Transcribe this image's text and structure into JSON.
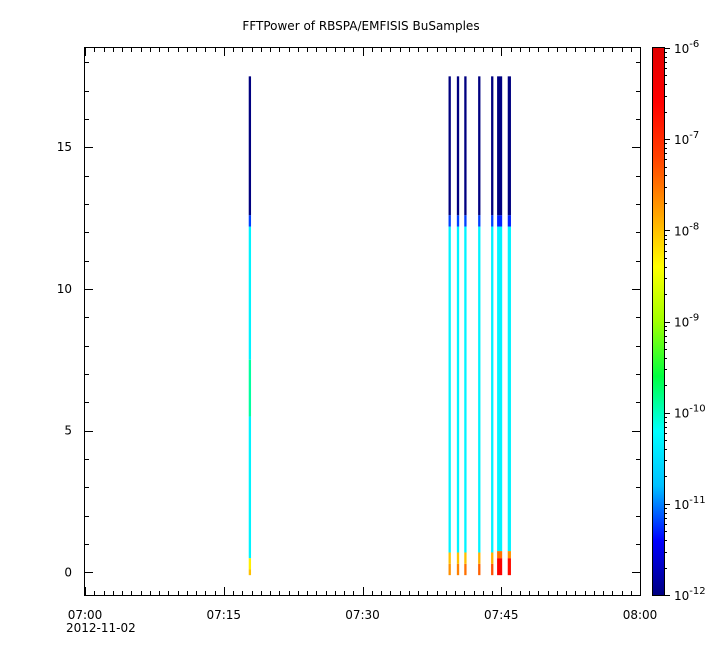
{
  "chart_data": {
    "type": "heatmap",
    "title": "FFTPower of RBSPA/EMFISIS  BuSamples",
    "xlabel": "",
    "ylabel": "",
    "x_axis": {
      "type": "time",
      "range": [
        "07:00",
        "08:00"
      ],
      "tick_labels": [
        "07:00",
        "07:15",
        "07:30",
        "07:45",
        "08:00"
      ],
      "date_label": "2012-11-02"
    },
    "y_axis": {
      "range": [
        -0.8,
        18.5
      ],
      "tick_labels": [
        "0",
        "5",
        "10",
        "15"
      ],
      "tick_values": [
        0,
        5,
        10,
        15
      ]
    },
    "colorbar": {
      "scale": "log",
      "range": [
        1e-12,
        1e-06
      ],
      "tick_base": "10",
      "tick_exponents": [
        "-12",
        "-11",
        "-10",
        "-9",
        "-8",
        "-7",
        "-6"
      ],
      "colormap": [
        "#000080",
        "#0000ff",
        "#00c0ff",
        "#00ffff",
        "#00ff40",
        "#a0ff00",
        "#ffff00",
        "#ffa000",
        "#ff4000",
        "#ff0000",
        "#e00000"
      ]
    },
    "columns": [
      {
        "time_min": 17.7,
        "width_min": 0.25,
        "bands": [
          {
            "y0": -0.1,
            "y1": 0.1,
            "log_power": -8.0
          },
          {
            "y0": 0.1,
            "y1": 0.5,
            "log_power": -8.3
          },
          {
            "y0": 0.5,
            "y1": 5.5,
            "log_power": -10.3
          },
          {
            "y0": 5.5,
            "y1": 7.5,
            "log_power": -9.9
          },
          {
            "y0": 7.5,
            "y1": 12.2,
            "log_power": -10.3
          },
          {
            "y0": 12.2,
            "y1": 12.6,
            "log_power": -11.2
          },
          {
            "y0": 12.6,
            "y1": 17.5,
            "log_power": -12.0
          }
        ]
      },
      {
        "time_min": 39.3,
        "width_min": 0.25,
        "bands": [
          {
            "y0": -0.1,
            "y1": 0.3,
            "log_power": -7.7
          },
          {
            "y0": 0.3,
            "y1": 0.7,
            "log_power": -8.0
          },
          {
            "y0": 0.7,
            "y1": 12.2,
            "log_power": -10.3
          },
          {
            "y0": 12.2,
            "y1": 12.6,
            "log_power": -11.2
          },
          {
            "y0": 12.6,
            "y1": 17.5,
            "log_power": -12.0
          }
        ]
      },
      {
        "time_min": 40.2,
        "width_min": 0.25,
        "bands": [
          {
            "y0": -0.1,
            "y1": 0.3,
            "log_power": -7.6
          },
          {
            "y0": 0.3,
            "y1": 0.7,
            "log_power": -8.0
          },
          {
            "y0": 0.7,
            "y1": 12.2,
            "log_power": -10.3
          },
          {
            "y0": 12.2,
            "y1": 12.6,
            "log_power": -11.2
          },
          {
            "y0": 12.6,
            "y1": 17.5,
            "log_power": -12.0
          }
        ]
      },
      {
        "time_min": 41.0,
        "width_min": 0.25,
        "bands": [
          {
            "y0": -0.1,
            "y1": 0.3,
            "log_power": -7.5
          },
          {
            "y0": 0.3,
            "y1": 0.7,
            "log_power": -8.0
          },
          {
            "y0": 0.7,
            "y1": 12.2,
            "log_power": -10.3
          },
          {
            "y0": 12.2,
            "y1": 12.6,
            "log_power": -11.2
          },
          {
            "y0": 12.6,
            "y1": 17.5,
            "log_power": -12.0
          }
        ]
      },
      {
        "time_min": 42.5,
        "width_min": 0.25,
        "bands": [
          {
            "y0": -0.1,
            "y1": 0.3,
            "log_power": -7.4
          },
          {
            "y0": 0.3,
            "y1": 0.7,
            "log_power": -7.9
          },
          {
            "y0": 0.7,
            "y1": 12.2,
            "log_power": -10.3
          },
          {
            "y0": 12.2,
            "y1": 12.6,
            "log_power": -11.2
          },
          {
            "y0": 12.6,
            "y1": 17.5,
            "log_power": -12.0
          }
        ]
      },
      {
        "time_min": 43.9,
        "width_min": 0.25,
        "bands": [
          {
            "y0": -0.1,
            "y1": 0.3,
            "log_power": -7.3
          },
          {
            "y0": 0.3,
            "y1": 0.7,
            "log_power": -7.9
          },
          {
            "y0": 0.7,
            "y1": 12.2,
            "log_power": -10.3
          },
          {
            "y0": 12.2,
            "y1": 12.6,
            "log_power": -11.2
          },
          {
            "y0": 12.6,
            "y1": 17.5,
            "log_power": -12.0
          }
        ]
      },
      {
        "time_min": 44.55,
        "width_min": 0.55,
        "bands": [
          {
            "y0": -0.1,
            "y1": 0.5,
            "log_power": -6.5
          },
          {
            "y0": 0.5,
            "y1": 0.75,
            "log_power": -7.5
          },
          {
            "y0": 0.75,
            "y1": 12.2,
            "log_power": -10.3
          },
          {
            "y0": 12.2,
            "y1": 12.6,
            "log_power": -11.3
          },
          {
            "y0": 12.6,
            "y1": 17.5,
            "log_power": -12.0
          }
        ]
      },
      {
        "time_min": 45.7,
        "width_min": 0.35,
        "bands": [
          {
            "y0": -0.1,
            "y1": 0.5,
            "log_power": -6.7
          },
          {
            "y0": 0.5,
            "y1": 0.75,
            "log_power": -7.7
          },
          {
            "y0": 0.75,
            "y1": 12.2,
            "log_power": -10.3
          },
          {
            "y0": 12.2,
            "y1": 12.6,
            "log_power": -11.3
          },
          {
            "y0": 12.6,
            "y1": 17.5,
            "log_power": -12.0
          }
        ]
      }
    ]
  }
}
